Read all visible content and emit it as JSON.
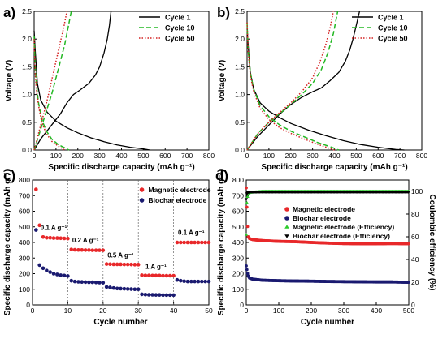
{
  "chart_data": [
    {
      "panel": "a)",
      "type": "line",
      "xlabel": "Specific discharge capacity (mAh g⁻¹)",
      "ylabel": "Voltage (V)",
      "xlim": [
        0,
        800
      ],
      "ylim": [
        0,
        2.5
      ],
      "xticks": [
        "0",
        "100",
        "200",
        "300",
        "400",
        "500",
        "600",
        "700",
        "800"
      ],
      "yticks": [
        "0.0",
        "0.5",
        "1.0",
        "1.5",
        "2.0",
        "2.5"
      ],
      "legend_position": "top-right",
      "series": [
        {
          "name": "Cycle 1",
          "style": "solid",
          "color": "#000000",
          "discharge": [
            [
              0,
              2.15
            ],
            [
              5,
              1.8
            ],
            [
              15,
              1.2
            ],
            [
              30,
              0.9
            ],
            [
              60,
              0.68
            ],
            [
              100,
              0.52
            ],
            [
              150,
              0.4
            ],
            [
              200,
              0.31
            ],
            [
              260,
              0.22
            ],
            [
              320,
              0.15
            ],
            [
              380,
              0.09
            ],
            [
              440,
              0.05
            ],
            [
              500,
              0.02
            ],
            [
              530,
              0.0
            ]
          ],
          "charge": [
            [
              0,
              0.0
            ],
            [
              30,
              0.2
            ],
            [
              60,
              0.35
            ],
            [
              90,
              0.5
            ],
            [
              120,
              0.65
            ],
            [
              150,
              0.85
            ],
            [
              180,
              1.0
            ],
            [
              210,
              1.08
            ],
            [
              250,
              1.2
            ],
            [
              280,
              1.35
            ],
            [
              300,
              1.5
            ],
            [
              320,
              1.75
            ],
            [
              335,
              2.0
            ],
            [
              345,
              2.25
            ],
            [
              352,
              2.5
            ]
          ]
        },
        {
          "name": "Cycle 10",
          "style": "dashed",
          "color": "#22b822",
          "discharge": [
            [
              0,
              2.05
            ],
            [
              5,
              1.5
            ],
            [
              10,
              1.2
            ],
            [
              20,
              0.85
            ],
            [
              35,
              0.55
            ],
            [
              55,
              0.35
            ],
            [
              80,
              0.2
            ],
            [
              110,
              0.1
            ],
            [
              140,
              0.04
            ],
            [
              160,
              0.0
            ]
          ],
          "charge": [
            [
              0,
              0.0
            ],
            [
              20,
              0.25
            ],
            [
              40,
              0.5
            ],
            [
              60,
              0.75
            ],
            [
              80,
              1.0
            ],
            [
              100,
              1.3
            ],
            [
              120,
              1.6
            ],
            [
              140,
              1.9
            ],
            [
              155,
              2.2
            ],
            [
              170,
              2.5
            ]
          ]
        },
        {
          "name": "Cycle 50",
          "style": "dotted",
          "color": "#d42020",
          "discharge": [
            [
              0,
              2.0
            ],
            [
              5,
              1.4
            ],
            [
              10,
              1.1
            ],
            [
              20,
              0.8
            ],
            [
              35,
              0.5
            ],
            [
              55,
              0.3
            ],
            [
              80,
              0.16
            ],
            [
              110,
              0.07
            ],
            [
              140,
              0.0
            ]
          ],
          "charge": [
            [
              0,
              0.0
            ],
            [
              20,
              0.3
            ],
            [
              40,
              0.6
            ],
            [
              60,
              0.9
            ],
            [
              80,
              1.25
            ],
            [
              100,
              1.6
            ],
            [
              120,
              1.95
            ],
            [
              135,
              2.2
            ],
            [
              150,
              2.5
            ]
          ]
        }
      ]
    },
    {
      "panel": "b)",
      "type": "line",
      "xlabel": "Specific discharge capacity (mAh g⁻¹)",
      "ylabel": "Voltage (V)",
      "xlim": [
        0,
        800
      ],
      "ylim": [
        0,
        2.5
      ],
      "xticks": [
        "0",
        "100",
        "200",
        "300",
        "400",
        "500",
        "600",
        "700",
        "800"
      ],
      "yticks": [
        "0.0",
        "0.5",
        "1.0",
        "1.5",
        "2.0",
        "2.5"
      ],
      "legend_position": "top-right",
      "series": [
        {
          "name": "Cycle 1",
          "style": "solid",
          "color": "#000000",
          "discharge": [
            [
              0,
              2.2
            ],
            [
              5,
              1.9
            ],
            [
              15,
              1.4
            ],
            [
              30,
              1.1
            ],
            [
              60,
              0.85
            ],
            [
              100,
              0.7
            ],
            [
              150,
              0.58
            ],
            [
              200,
              0.48
            ],
            [
              280,
              0.36
            ],
            [
              360,
              0.26
            ],
            [
              440,
              0.17
            ],
            [
              520,
              0.1
            ],
            [
              600,
              0.05
            ],
            [
              680,
              0.01
            ],
            [
              720,
              0.0
            ]
          ],
          "charge": [
            [
              0,
              0.0
            ],
            [
              50,
              0.25
            ],
            [
              100,
              0.45
            ],
            [
              150,
              0.65
            ],
            [
              200,
              0.82
            ],
            [
              250,
              0.95
            ],
            [
              300,
              1.05
            ],
            [
              340,
              1.12
            ],
            [
              380,
              1.25
            ],
            [
              420,
              1.4
            ],
            [
              450,
              1.6
            ],
            [
              470,
              1.8
            ],
            [
              485,
              2.0
            ],
            [
              500,
              2.25
            ],
            [
              515,
              2.5
            ]
          ]
        },
        {
          "name": "Cycle 10",
          "style": "dashed",
          "color": "#22b822",
          "discharge": [
            [
              0,
              2.3
            ],
            [
              5,
              1.8
            ],
            [
              15,
              1.4
            ],
            [
              30,
              1.1
            ],
            [
              60,
              0.8
            ],
            [
              100,
              0.6
            ],
            [
              150,
              0.45
            ],
            [
              200,
              0.34
            ],
            [
              260,
              0.24
            ],
            [
              320,
              0.14
            ],
            [
              380,
              0.06
            ],
            [
              420,
              0.0
            ]
          ],
          "charge": [
            [
              0,
              0.0
            ],
            [
              50,
              0.3
            ],
            [
              100,
              0.5
            ],
            [
              150,
              0.66
            ],
            [
              200,
              0.82
            ],
            [
              250,
              1.0
            ],
            [
              300,
              1.2
            ],
            [
              340,
              1.45
            ],
            [
              370,
              1.75
            ],
            [
              395,
              2.1
            ],
            [
              415,
              2.5
            ]
          ]
        },
        {
          "name": "Cycle 50",
          "style": "dotted",
          "color": "#d42020",
          "discharge": [
            [
              0,
              2.3
            ],
            [
              5,
              1.8
            ],
            [
              15,
              1.35
            ],
            [
              30,
              1.05
            ],
            [
              60,
              0.75
            ],
            [
              100,
              0.55
            ],
            [
              150,
              0.4
            ],
            [
              200,
              0.3
            ],
            [
              260,
              0.2
            ],
            [
              320,
              0.11
            ],
            [
              370,
              0.04
            ],
            [
              400,
              0.0
            ]
          ],
          "charge": [
            [
              0,
              0.0
            ],
            [
              50,
              0.3
            ],
            [
              100,
              0.5
            ],
            [
              150,
              0.68
            ],
            [
              200,
              0.85
            ],
            [
              250,
              1.05
            ],
            [
              300,
              1.3
            ],
            [
              335,
              1.6
            ],
            [
              360,
              1.9
            ],
            [
              380,
              2.2
            ],
            [
              395,
              2.5
            ]
          ]
        }
      ]
    },
    {
      "panel": "c)",
      "type": "scatter",
      "xlabel": "Cycle number",
      "ylabel": "Specific discharge capacity (mAh g⁻¹)",
      "xlim": [
        0,
        50
      ],
      "ylim": [
        0,
        800
      ],
      "xticks": [
        "0",
        "10",
        "20",
        "30",
        "40",
        "50"
      ],
      "yticks": [
        "0",
        "100",
        "200",
        "300",
        "400",
        "500",
        "600",
        "700",
        "800"
      ],
      "rate_boundaries": [
        10,
        20,
        30,
        40
      ],
      "rate_labels": [
        {
          "text": "0.1 A g⁻¹",
          "x": 6,
          "y": 480
        },
        {
          "text": "0.2 A g⁻¹",
          "x": 15,
          "y": 400
        },
        {
          "text": "0.5 A g⁻¹",
          "x": 25,
          "y": 305
        },
        {
          "text": "1 A g⁻¹",
          "x": 35,
          "y": 230
        },
        {
          "text": "0.1 A g⁻¹",
          "x": 45,
          "y": 450
        }
      ],
      "legend_position": "top-right",
      "series": [
        {
          "name": "Magnetic electrode",
          "color": "#e8282a",
          "marker": "circle",
          "x": [
            1,
            2,
            3,
            4,
            5,
            6,
            7,
            8,
            9,
            10,
            11,
            12,
            13,
            14,
            15,
            16,
            17,
            18,
            19,
            20,
            21,
            22,
            23,
            24,
            25,
            26,
            27,
            28,
            29,
            30,
            31,
            32,
            33,
            34,
            35,
            36,
            37,
            38,
            39,
            40,
            41,
            42,
            43,
            44,
            45,
            46,
            47,
            48,
            49,
            50
          ],
          "values": [
            740,
            510,
            435,
            430,
            430,
            428,
            428,
            427,
            426,
            425,
            355,
            353,
            352,
            352,
            351,
            351,
            350,
            350,
            350,
            350,
            262,
            261,
            260,
            260,
            260,
            259,
            259,
            259,
            258,
            258,
            190,
            189,
            189,
            188,
            188,
            188,
            187,
            187,
            187,
            187,
            400,
            400,
            400,
            400,
            400,
            400,
            400,
            400,
            400,
            400
          ]
        },
        {
          "name": "Biochar electrode",
          "color": "#1a1a70",
          "marker": "circle",
          "x": [
            1,
            2,
            3,
            4,
            5,
            6,
            7,
            8,
            9,
            10,
            11,
            12,
            13,
            14,
            15,
            16,
            17,
            18,
            19,
            20,
            21,
            22,
            23,
            24,
            25,
            26,
            27,
            28,
            29,
            30,
            31,
            32,
            33,
            34,
            35,
            36,
            37,
            38,
            39,
            40,
            41,
            42,
            43,
            44,
            45,
            46,
            47,
            48,
            49,
            50
          ],
          "values": [
            480,
            255,
            235,
            220,
            210,
            200,
            195,
            190,
            188,
            185,
            155,
            150,
            148,
            147,
            146,
            145,
            145,
            144,
            143,
            142,
            115,
            112,
            108,
            105,
            104,
            103,
            102,
            101,
            100,
            100,
            68,
            66,
            65,
            65,
            64,
            64,
            63,
            63,
            63,
            63,
            160,
            155,
            152,
            150,
            150,
            150,
            150,
            150,
            150,
            150
          ]
        }
      ]
    },
    {
      "panel": "d)",
      "type": "scatter",
      "xlabel": "Cycle number",
      "ylabel": "Specific discharge capacity (mAh g⁻¹)",
      "y2label": "Coulombic efficiency (%)",
      "xlim": [
        0,
        500
      ],
      "ylim": [
        0,
        800
      ],
      "y2lim": [
        0,
        110
      ],
      "xticks": [
        "0",
        "100",
        "200",
        "300",
        "400",
        "500"
      ],
      "yticks": [
        "0",
        "100",
        "200",
        "300",
        "400",
        "500",
        "600",
        "700",
        "800"
      ],
      "y2ticks": [
        "0",
        "20",
        "40",
        "60",
        "80",
        "100"
      ],
      "legend_position": "top-right",
      "series": [
        {
          "name": "Magnetic electrode",
          "color": "#e8282a",
          "marker": "circle",
          "axis": "left",
          "x": [
            0,
            5,
            10,
            20,
            50,
            100,
            150,
            200,
            250,
            300,
            350,
            400,
            450,
            500
          ],
          "values": [
            750,
            440,
            425,
            418,
            412,
            407,
            405,
            400,
            396,
            393,
            392,
            392,
            393,
            392
          ]
        },
        {
          "name": "Biochar electrode",
          "color": "#1a1a70",
          "marker": "circle",
          "axis": "left",
          "x": [
            0,
            5,
            10,
            20,
            50,
            100,
            150,
            200,
            250,
            300,
            350,
            400,
            450,
            500
          ],
          "values": [
            250,
            190,
            172,
            165,
            158,
            155,
            153,
            152,
            150,
            149,
            148,
            147,
            147,
            145
          ]
        },
        {
          "name": "Magnetic electrode  (Efficiency)",
          "color": "#2ccc2c",
          "marker": "triangle-up",
          "axis": "right",
          "x": [
            0,
            2,
            5,
            10,
            50,
            100,
            150,
            200,
            250,
            300,
            350,
            400,
            450,
            500
          ],
          "values": [
            62,
            90,
            98,
            99,
            100,
            100,
            100,
            100,
            100,
            100,
            100,
            100,
            100,
            100
          ]
        },
        {
          "name": "Biochar electrode (Efficiency)",
          "color": "#000000",
          "marker": "triangle-down",
          "axis": "right",
          "x": [
            0,
            2,
            5,
            10,
            50,
            100,
            150,
            200,
            250,
            300,
            350,
            400,
            450,
            500
          ],
          "values": [
            93,
            98,
            99,
            99.5,
            99.5,
            99.5,
            99.5,
            99.5,
            99.5,
            99.5,
            99.5,
            99.5,
            99.5,
            99.5
          ]
        }
      ]
    }
  ]
}
